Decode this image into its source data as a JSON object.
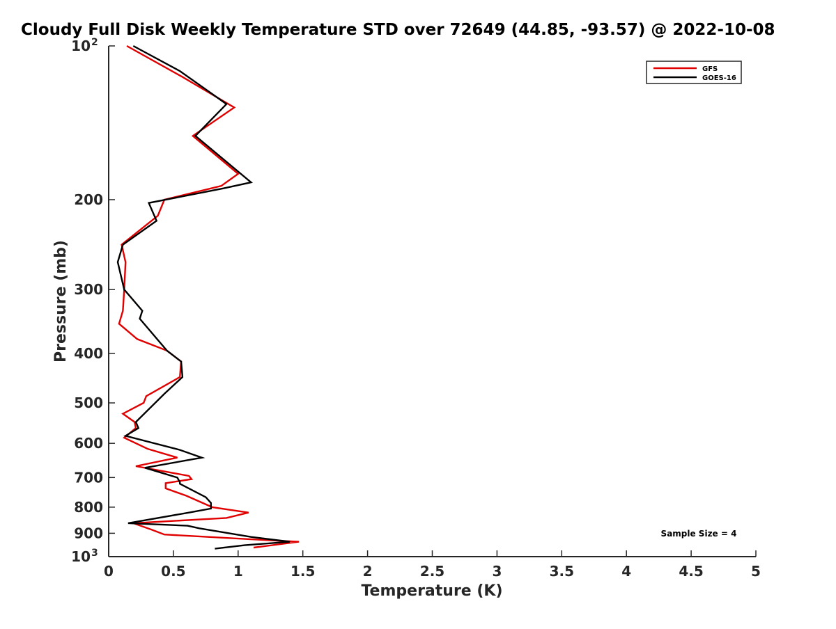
{
  "chart_data": {
    "type": "line",
    "title": "Cloudy Full Disk Weekly Temperature STD over 72649 (44.85, -93.57) @ 2022-10-08",
    "xlabel": "Temperature (K)",
    "ylabel": "Pressure (mb)",
    "xlim": [
      0,
      5
    ],
    "ylim": [
      100,
      1000
    ],
    "y_scale": "log",
    "y_reversed": true,
    "grid": false,
    "legend_position": "top-right",
    "x_ticks": [
      "0",
      "0.5",
      "1",
      "1.5",
      "2",
      "2.5",
      "3",
      "3.5",
      "4",
      "4.5",
      "5"
    ],
    "y_ticks": [
      {
        "value": 100,
        "label": "10",
        "sup": "2"
      },
      {
        "value": 200,
        "label": "200"
      },
      {
        "value": 300,
        "label": "300"
      },
      {
        "value": 400,
        "label": "400"
      },
      {
        "value": 500,
        "label": "500"
      },
      {
        "value": 600,
        "label": "600"
      },
      {
        "value": 700,
        "label": "700"
      },
      {
        "value": 800,
        "label": "800"
      },
      {
        "value": 900,
        "label": "900"
      },
      {
        "value": 1000,
        "label": "10",
        "sup": "3"
      }
    ],
    "annotation": "Sample Size = 4",
    "series": [
      {
        "name": "GFS",
        "color": "#e00000",
        "points": [
          [
            0.14,
            100
          ],
          [
            0.57,
            115
          ],
          [
            0.97,
            132
          ],
          [
            0.65,
            150
          ],
          [
            1.0,
            178
          ],
          [
            0.87,
            188
          ],
          [
            0.43,
            200
          ],
          [
            0.38,
            215
          ],
          [
            0.1,
            245
          ],
          [
            0.13,
            265
          ],
          [
            0.12,
            300
          ],
          [
            0.11,
            330
          ],
          [
            0.08,
            350
          ],
          [
            0.22,
            375
          ],
          [
            0.45,
            395
          ],
          [
            0.56,
            415
          ],
          [
            0.55,
            445
          ],
          [
            0.29,
            485
          ],
          [
            0.27,
            500
          ],
          [
            0.11,
            525
          ],
          [
            0.2,
            545
          ],
          [
            0.21,
            560
          ],
          [
            0.12,
            585
          ],
          [
            0.3,
            615
          ],
          [
            0.53,
            640
          ],
          [
            0.21,
            665
          ],
          [
            0.62,
            695
          ],
          [
            0.64,
            705
          ],
          [
            0.44,
            718
          ],
          [
            0.44,
            735
          ],
          [
            0.6,
            760
          ],
          [
            0.8,
            800
          ],
          [
            1.08,
            820
          ],
          [
            0.91,
            840
          ],
          [
            0.19,
            860
          ],
          [
            0.33,
            885
          ],
          [
            0.43,
            905
          ],
          [
            1.1,
            925
          ],
          [
            1.47,
            935
          ],
          [
            1.12,
            960
          ]
        ]
      },
      {
        "name": "GOES-16",
        "color": "#000000",
        "points": [
          [
            0.19,
            100
          ],
          [
            0.55,
            112
          ],
          [
            0.91,
            130
          ],
          [
            0.67,
            150
          ],
          [
            1.1,
            185
          ],
          [
            0.89,
            190
          ],
          [
            0.31,
            203
          ],
          [
            0.37,
            220
          ],
          [
            0.11,
            245
          ],
          [
            0.07,
            265
          ],
          [
            0.12,
            300
          ],
          [
            0.26,
            330
          ],
          [
            0.24,
            342
          ],
          [
            0.45,
            395
          ],
          [
            0.56,
            415
          ],
          [
            0.57,
            445
          ],
          [
            0.43,
            480
          ],
          [
            0.21,
            545
          ],
          [
            0.23,
            560
          ],
          [
            0.13,
            580
          ],
          [
            0.55,
            618
          ],
          [
            0.72,
            640
          ],
          [
            0.28,
            670
          ],
          [
            0.53,
            700
          ],
          [
            0.55,
            715
          ],
          [
            0.55,
            720
          ],
          [
            0.75,
            765
          ],
          [
            0.79,
            785
          ],
          [
            0.79,
            805
          ],
          [
            0.62,
            820
          ],
          [
            0.15,
            860
          ],
          [
            0.61,
            870
          ],
          [
            0.7,
            880
          ],
          [
            1.1,
            915
          ],
          [
            1.4,
            935
          ],
          [
            1.05,
            950
          ],
          [
            0.82,
            965
          ]
        ]
      }
    ]
  }
}
